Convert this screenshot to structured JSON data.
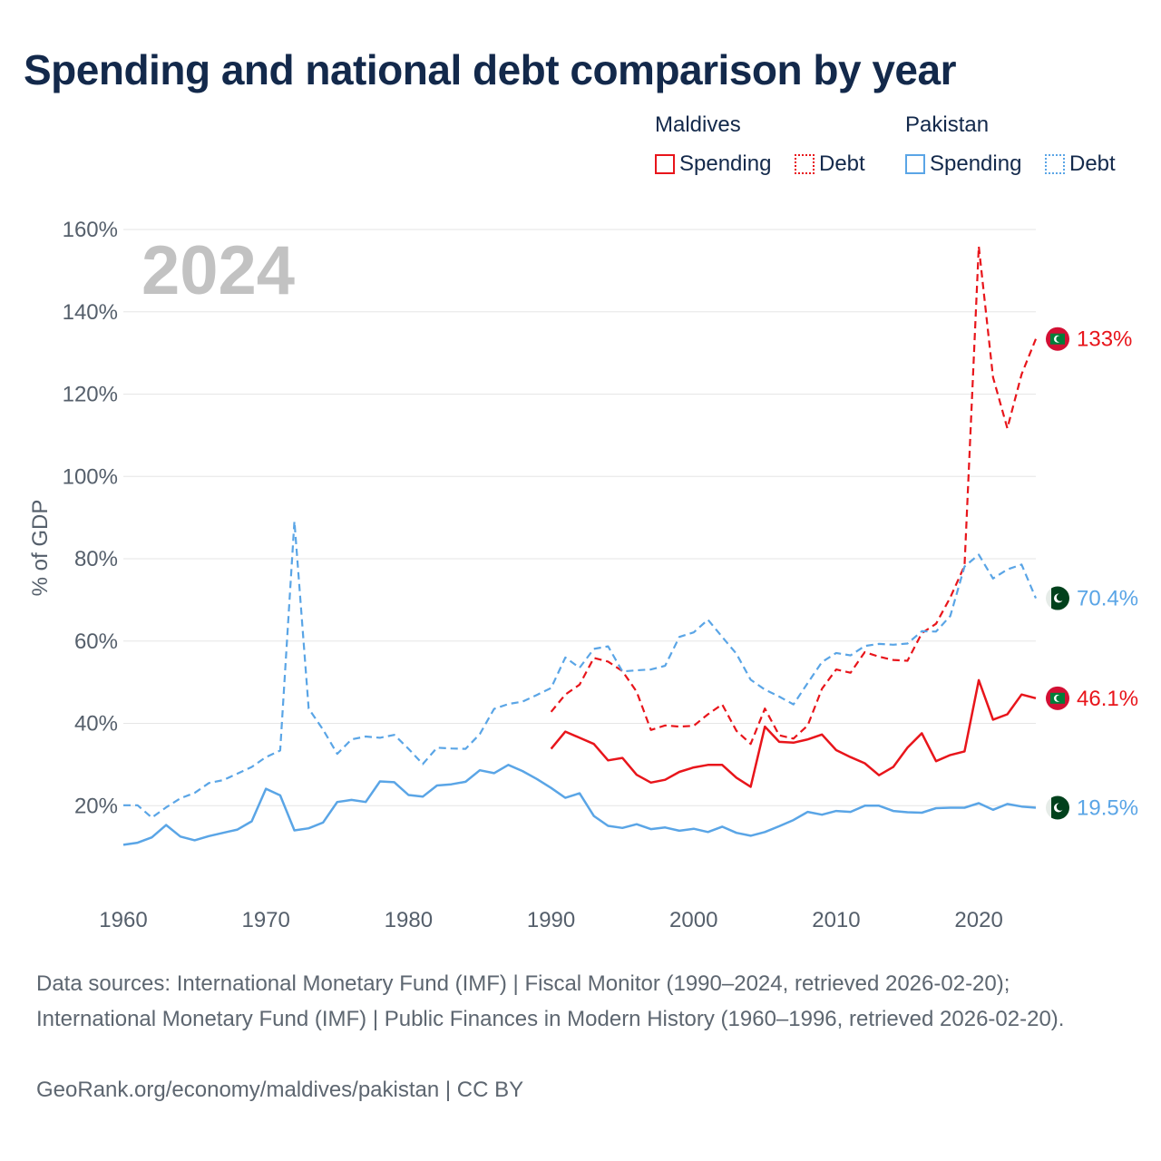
{
  "title": "Spending and national debt comparison by year",
  "legend": {
    "groups": [
      {
        "country": "Maldives",
        "color": "#e8151b",
        "spending_label": "Spending",
        "debt_label": "Debt"
      },
      {
        "country": "Pakistan",
        "color": "#5aa5e6",
        "spending_label": "Spending",
        "debt_label": "Debt"
      }
    ]
  },
  "footer": {
    "sources": "Data sources: International Monetary Fund (IMF) | Fiscal Monitor (1990–2024, retrieved 2026-02-20); International Monetary Fund (IMF) | Public Finances in Modern History (1960–1996, retrieved 2026-02-20).",
    "credit": "GeoRank.org/economy/maldives/pakistan | CC BY"
  },
  "chart_data": {
    "type": "line",
    "title": "Spending and national debt comparison by year",
    "year_watermark": "2024",
    "ylabel": "% of GDP",
    "xlabel": "",
    "xlim": [
      1960,
      2024
    ],
    "ylim": [
      0,
      160
    ],
    "x_ticks": [
      1960,
      1970,
      1980,
      1990,
      2000,
      2010,
      2020
    ],
    "y_ticks": [
      20,
      40,
      60,
      80,
      100,
      120,
      140,
      160
    ],
    "y_tick_labels": [
      "20%",
      "40%",
      "60%",
      "80%",
      "100%",
      "120%",
      "140%",
      "160%"
    ],
    "grid": true,
    "series": [
      {
        "name": "Maldives Spending",
        "country": "Maldives",
        "measure": "Spending",
        "style": "solid",
        "color": "#e8151b",
        "end_label": "46.1%",
        "flag": "maldives",
        "x": [
          1990,
          1991,
          1992,
          1993,
          1994,
          1995,
          1996,
          1997,
          1998,
          1999,
          2000,
          2001,
          2002,
          2003,
          2004,
          2005,
          2006,
          2007,
          2008,
          2009,
          2010,
          2011,
          2012,
          2013,
          2014,
          2015,
          2016,
          2017,
          2018,
          2019,
          2020,
          2021,
          2022,
          2023,
          2024
        ],
        "values": [
          33.8,
          38,
          36.5,
          35,
          31,
          31.6,
          27.5,
          25.6,
          26.3,
          28.2,
          29.3,
          29.9,
          29.9,
          26.8,
          24.6,
          39.2,
          35.5,
          35.3,
          36.1,
          37.3,
          33.5,
          31.8,
          30.3,
          27.4,
          29.4,
          34.1,
          37.6,
          30.8,
          32.3,
          33.2,
          50.5,
          40.9,
          42.2,
          47,
          46.1
        ]
      },
      {
        "name": "Maldives Debt",
        "country": "Maldives",
        "measure": "Debt",
        "style": "dashed",
        "color": "#e8151b",
        "end_label": "133%",
        "flag": "maldives",
        "x": [
          1990,
          1991,
          1992,
          1993,
          1994,
          1995,
          1996,
          1997,
          1998,
          1999,
          2000,
          2001,
          2002,
          2003,
          2004,
          2005,
          2006,
          2007,
          2008,
          2009,
          2010,
          2011,
          2012,
          2013,
          2014,
          2015,
          2016,
          2017,
          2018,
          2019,
          2020,
          2021,
          2022,
          2023,
          2024
        ],
        "values": [
          42.8,
          47,
          49.4,
          55.9,
          55,
          52.7,
          47.7,
          38.4,
          39.5,
          39.2,
          39.4,
          42.2,
          44.6,
          38.2,
          35,
          43.6,
          37.1,
          36.3,
          39.5,
          48.4,
          53.1,
          52.3,
          57.3,
          56.2,
          55.4,
          55.2,
          61.9,
          64.2,
          70.6,
          78.3,
          155.9,
          124.1,
          111.7,
          124.8,
          133.4
        ]
      },
      {
        "name": "Pakistan Spending",
        "country": "Pakistan",
        "measure": "Spending",
        "style": "solid",
        "color": "#5aa5e6",
        "end_label": "19.5%",
        "flag": "pakistan",
        "x": [
          1960,
          1961,
          1962,
          1963,
          1964,
          1965,
          1966,
          1967,
          1968,
          1969,
          1970,
          1971,
          1972,
          1973,
          1974,
          1975,
          1976,
          1977,
          1978,
          1979,
          1980,
          1981,
          1982,
          1983,
          1984,
          1985,
          1986,
          1987,
          1988,
          1989,
          1990,
          1991,
          1992,
          1993,
          1994,
          1995,
          1996,
          1997,
          1998,
          1999,
          2000,
          2001,
          2002,
          2003,
          2004,
          2005,
          2006,
          2007,
          2008,
          2009,
          2010,
          2011,
          2012,
          2013,
          2014,
          2015,
          2016,
          2017,
          2018,
          2019,
          2020,
          2021,
          2022,
          2023,
          2024
        ],
        "values": [
          10.5,
          11,
          12.3,
          15.3,
          12.5,
          11.6,
          12.6,
          13.4,
          14.2,
          16.2,
          24.1,
          22.5,
          14,
          14.5,
          15.9,
          20.9,
          21.4,
          20.9,
          25.9,
          25.7,
          22.6,
          22.2,
          24.9,
          25.2,
          25.8,
          28.6,
          27.9,
          29.9,
          28.4,
          26.5,
          24.3,
          21.9,
          23,
          17.5,
          15.1,
          14.6,
          15.5,
          14.3,
          14.7,
          13.9,
          14.4,
          13.6,
          14.9,
          13.4,
          12.7,
          13.6,
          15,
          16.5,
          18.5,
          17.8,
          18.7,
          18.5,
          20,
          20,
          18.7,
          18.4,
          18.3,
          19.4,
          19.5,
          19.5,
          20.6,
          19,
          20.4,
          19.8,
          19.5
        ]
      },
      {
        "name": "Pakistan Debt",
        "country": "Pakistan",
        "measure": "Debt",
        "style": "dashed",
        "color": "#5aa5e6",
        "end_label": "70.4%",
        "flag": "pakistan",
        "x": [
          1960,
          1961,
          1962,
          1963,
          1964,
          1965,
          1966,
          1967,
          1968,
          1969,
          1970,
          1971,
          1972,
          1973,
          1974,
          1975,
          1976,
          1977,
          1978,
          1979,
          1980,
          1981,
          1982,
          1983,
          1984,
          1985,
          1986,
          1987,
          1988,
          1989,
          1990,
          1991,
          1992,
          1993,
          1994,
          1995,
          1996,
          1997,
          1998,
          1999,
          2000,
          2001,
          2002,
          2003,
          2004,
          2005,
          2006,
          2007,
          2008,
          2009,
          2010,
          2011,
          2012,
          2013,
          2014,
          2015,
          2016,
          2017,
          2018,
          2019,
          2020,
          2021,
          2022,
          2023,
          2024
        ],
        "values": [
          20.1,
          20.1,
          17.1,
          19.6,
          21.8,
          23.1,
          25.5,
          26.2,
          27.8,
          29.4,
          31.8,
          33.4,
          89.1,
          43.6,
          38.5,
          32.6,
          36.1,
          36.8,
          36.5,
          37.2,
          33.8,
          30.1,
          34.1,
          33.9,
          33.8,
          37.4,
          43.5,
          44.7,
          45.3,
          46.9,
          48.6,
          56,
          53.5,
          58.1,
          58.7,
          52.6,
          52.9,
          53.1,
          54,
          61,
          62.1,
          65.2,
          61,
          56.9,
          50.6,
          48.2,
          46.5,
          44.6,
          49.8,
          54.9,
          57.1,
          56.5,
          58.8,
          59.3,
          59.1,
          59.4,
          62.4,
          62.3,
          66.1,
          78.1,
          81,
          75.2,
          77.4,
          78.6,
          70.4
        ]
      }
    ]
  }
}
